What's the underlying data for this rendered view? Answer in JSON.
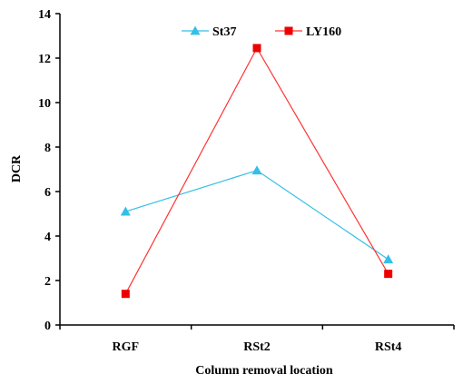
{
  "chart_data": {
    "type": "line",
    "categories": [
      "RGF",
      "RSt2",
      "RSt4"
    ],
    "series": [
      {
        "name": "St37",
        "values": [
          5.1,
          6.95,
          2.95
        ],
        "color": "#33bfe8",
        "marker": "triangle"
      },
      {
        "name": "LY160",
        "values": [
          1.4,
          12.45,
          2.3
        ],
        "color": "#ff3333",
        "marker_color": "#ee0000",
        "marker": "square"
      }
    ],
    "xlabel": "Column removal location",
    "ylabel": "DCR",
    "ylim": [
      0,
      14
    ],
    "yticks": [
      "0",
      "2",
      "4",
      "6",
      "8",
      "10",
      "12",
      "14"
    ],
    "grid": false,
    "legend_position": "top"
  }
}
